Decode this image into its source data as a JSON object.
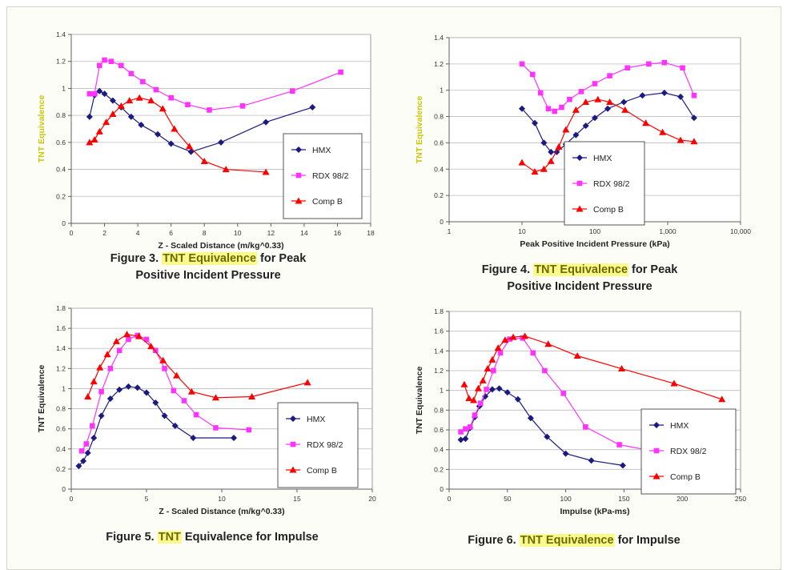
{
  "colors": {
    "plot_bg": "#ffffff",
    "grid": "#bdbdbd",
    "axis": "#606060",
    "ylabel_yellow": "#c8c800",
    "highlight_bg": "#fafa8c",
    "highlight_text": "#6b6b00"
  },
  "figures": [
    {
      "caption": {
        "prefix": "Figure 3. ",
        "highlight": "TNT Equivalence",
        "line1_rest": " for Peak",
        "line2": "Positive Incident Pressure"
      },
      "chart_data": {
        "type": "line",
        "xlabel": "Z - Scaled Distance (m/kg^0.33)",
        "ylabel": "TNT Equivalence",
        "ylabel_color": "#c8c800",
        "xscale": "linear",
        "xlim": [
          0,
          18
        ],
        "ylim": [
          0,
          1.4
        ],
        "xticks": [
          0,
          2,
          4,
          6,
          8,
          10,
          12,
          14,
          16,
          18
        ],
        "xtick_labels": [
          "0",
          "2",
          "4",
          "6",
          "8",
          "10",
          "12",
          "14",
          "16",
          "18"
        ],
        "yticks": [
          0,
          0.2,
          0.4,
          0.6,
          0.8,
          1,
          1.2,
          1.4
        ],
        "ytick_labels": [
          "0",
          "0.2",
          "0.4",
          "0.6",
          "0.8",
          "1",
          "1.2",
          "1.4"
        ],
        "grid": "horizontal",
        "legend_position": "bottom-right",
        "series": [
          {
            "name": "HMX",
            "color": "#1a1a80",
            "marker": "diamond",
            "x": [
              1.1,
              1.4,
              1.7,
              2.0,
              2.5,
              3.0,
              3.6,
              4.2,
              5.2,
              6.0,
              7.2,
              9.0,
              11.7,
              14.5
            ],
            "y": [
              0.79,
              0.95,
              0.98,
              0.96,
              0.91,
              0.86,
              0.79,
              0.73,
              0.66,
              0.59,
              0.53,
              0.6,
              0.75,
              0.86
            ]
          },
          {
            "name": "RDX 98/2",
            "color": "#ff33ff",
            "marker": "square",
            "x": [
              1.1,
              1.4,
              1.7,
              2.0,
              2.4,
              3.0,
              3.6,
              4.3,
              5.1,
              6.0,
              7.0,
              8.3,
              10.3,
              13.3,
              16.2
            ],
            "y": [
              0.96,
              0.96,
              1.17,
              1.21,
              1.2,
              1.17,
              1.11,
              1.05,
              0.99,
              0.93,
              0.88,
              0.84,
              0.87,
              0.98,
              1.12
            ]
          },
          {
            "name": "Comp B",
            "color": "#ff0000",
            "marker": "triangle",
            "x": [
              1.1,
              1.4,
              1.7,
              2.1,
              2.5,
              3.0,
              3.5,
              4.1,
              4.8,
              5.5,
              6.2,
              7.1,
              8.0,
              9.3,
              11.7
            ],
            "y": [
              0.6,
              0.62,
              0.68,
              0.75,
              0.81,
              0.87,
              0.91,
              0.93,
              0.91,
              0.85,
              0.7,
              0.57,
              0.46,
              0.4,
              0.38
            ]
          }
        ]
      }
    },
    {
      "caption": {
        "prefix": "Figure 4. ",
        "highlight": "TNT Equivalence",
        "line1_rest": " for Peak",
        "line2": "Positive Incident Pressure"
      },
      "chart_data": {
        "type": "line",
        "xlabel": "Peak Positive Incident Pressure (kPa)",
        "ylabel": "TNT Equivalence",
        "ylabel_color": "#c8c800",
        "xscale": "log",
        "xlim": [
          1,
          10000
        ],
        "ylim": [
          0,
          1.4
        ],
        "xticks": [
          1,
          10,
          100,
          1000,
          10000
        ],
        "xtick_labels": [
          "1",
          "10",
          "100",
          "1,000",
          "10,000"
        ],
        "yticks": [
          0,
          0.2,
          0.4,
          0.6,
          0.8,
          1,
          1.2,
          1.4
        ],
        "ytick_labels": [
          "0",
          "0.2",
          "0.4",
          "0.6",
          "0.8",
          "1",
          "1.2",
          "1.4"
        ],
        "grid": "horizontal",
        "legend_position": "bottom-center",
        "series": [
          {
            "name": "HMX",
            "color": "#1a1a80",
            "marker": "diamond",
            "x": [
              10,
              15,
              20,
              25,
              30,
              40,
              55,
              75,
              100,
              150,
              250,
              450,
              900,
              1500,
              2300
            ],
            "y": [
              0.86,
              0.75,
              0.6,
              0.53,
              0.53,
              0.59,
              0.66,
              0.73,
              0.79,
              0.86,
              0.91,
              0.96,
              0.98,
              0.95,
              0.79
            ]
          },
          {
            "name": "RDX 98/2",
            "color": "#ff33ff",
            "marker": "square",
            "x": [
              10,
              14,
              18,
              23,
              28,
              35,
              45,
              65,
              100,
              160,
              280,
              550,
              900,
              1600,
              2300
            ],
            "y": [
              1.2,
              1.12,
              0.98,
              0.86,
              0.84,
              0.87,
              0.93,
              0.99,
              1.05,
              1.11,
              1.17,
              1.2,
              1.21,
              1.17,
              0.96
            ]
          },
          {
            "name": "Comp B",
            "color": "#ff0000",
            "marker": "triangle",
            "x": [
              10,
              15,
              20,
              25,
              32,
              40,
              55,
              75,
              110,
              160,
              260,
              500,
              850,
              1500,
              2300
            ],
            "y": [
              0.45,
              0.38,
              0.4,
              0.46,
              0.57,
              0.7,
              0.85,
              0.91,
              0.93,
              0.91,
              0.85,
              0.75,
              0.68,
              0.62,
              0.61
            ]
          }
        ]
      }
    },
    {
      "caption": {
        "prefix": "Figure 5. ",
        "highlight": "TNT",
        "line1_rest": " Equivalence for Impulse",
        "line2": ""
      },
      "chart_data": {
        "type": "line",
        "xlabel": "Z - Scaled Distance (m/kg^0.33)",
        "ylabel": "TNT Equivalence",
        "ylabel_color": "#222222",
        "xscale": "linear",
        "xlim": [
          0,
          20
        ],
        "ylim": [
          0,
          1.8
        ],
        "xticks": [
          0,
          5,
          10,
          15,
          20
        ],
        "xtick_labels": [
          "0",
          "5",
          "10",
          "15",
          "20"
        ],
        "yticks": [
          0,
          0.2,
          0.4,
          0.6,
          0.8,
          1,
          1.2,
          1.4,
          1.6,
          1.8
        ],
        "ytick_labels": [
          "0",
          "0.2",
          "0.4",
          "0.6",
          "0.8",
          "1",
          "1.2",
          "1.4",
          "1.6",
          "1.8"
        ],
        "grid": "horizontal",
        "legend_position": "bottom-right",
        "series": [
          {
            "name": "HMX",
            "color": "#1a1a80",
            "marker": "diamond",
            "x": [
              0.5,
              0.8,
              1.1,
              1.5,
              2.0,
              2.6,
              3.2,
              3.8,
              4.4,
              5.0,
              5.6,
              6.2,
              6.9,
              8.1,
              10.8
            ],
            "y": [
              0.23,
              0.28,
              0.36,
              0.51,
              0.73,
              0.9,
              0.99,
              1.02,
              1.01,
              0.96,
              0.86,
              0.73,
              0.63,
              0.51,
              0.51
            ]
          },
          {
            "name": "RDX 98/2",
            "color": "#ff33ff",
            "marker": "square",
            "x": [
              0.7,
              1.0,
              1.4,
              2.0,
              2.6,
              3.2,
              3.8,
              4.4,
              5.0,
              5.6,
              6.2,
              6.8,
              7.5,
              8.3,
              9.6,
              11.8
            ],
            "y": [
              0.38,
              0.45,
              0.63,
              0.97,
              1.2,
              1.38,
              1.49,
              1.53,
              1.49,
              1.38,
              1.2,
              0.98,
              0.88,
              0.74,
              0.61,
              0.59
            ]
          },
          {
            "name": "Comp B",
            "color": "#ff0000",
            "marker": "triangle",
            "x": [
              1.1,
              1.5,
              1.9,
              2.4,
              3.0,
              3.7,
              4.5,
              5.3,
              6.1,
              7.0,
              8.0,
              9.6,
              12.0,
              15.7
            ],
            "y": [
              0.92,
              1.07,
              1.21,
              1.34,
              1.47,
              1.54,
              1.52,
              1.42,
              1.28,
              1.13,
              0.97,
              0.91,
              0.92,
              1.06
            ]
          }
        ]
      }
    },
    {
      "caption": {
        "prefix": "Figure 6. ",
        "highlight": "TNT Equivalence",
        "line1_rest": " for Impulse",
        "line2": ""
      },
      "chart_data": {
        "type": "line",
        "xlabel": "Impulse (kPa-ms)",
        "ylabel": "TNT Equivalence",
        "ylabel_color": "#222222",
        "xscale": "linear",
        "xlim": [
          0,
          250
        ],
        "ylim": [
          0,
          1.8
        ],
        "xticks": [
          0,
          50,
          100,
          150,
          200,
          250
        ],
        "xtick_labels": [
          "0",
          "50",
          "100",
          "150",
          "200",
          "250"
        ],
        "yticks": [
          0,
          0.2,
          0.4,
          0.6,
          0.8,
          1,
          1.2,
          1.4,
          1.6,
          1.8
        ],
        "ytick_labels": [
          "0",
          "0.2",
          "0.4",
          "0.6",
          "0.8",
          "1",
          "1.2",
          "1.4",
          "1.6",
          "1.8"
        ],
        "grid": "horizontal",
        "legend_position": "bottom-right",
        "series": [
          {
            "name": "HMX",
            "color": "#1a1a80",
            "marker": "diamond",
            "x": [
              10,
              14,
              18,
              22,
              26,
              31,
              37,
              43,
              50,
              59,
              70,
              84,
              100,
              122,
              149
            ],
            "y": [
              0.5,
              0.51,
              0.62,
              0.73,
              0.84,
              0.94,
              1.01,
              1.02,
              0.98,
              0.91,
              0.72,
              0.53,
              0.36,
              0.29,
              0.24
            ]
          },
          {
            "name": "RDX 98/2",
            "color": "#ff33ff",
            "marker": "square",
            "x": [
              10,
              14,
              18,
              22,
              27,
              32,
              38,
              44,
              52,
              63,
              72,
              82,
              98,
              117,
              146,
              173
            ],
            "y": [
              0.58,
              0.61,
              0.63,
              0.75,
              0.87,
              1.01,
              1.2,
              1.38,
              1.52,
              1.53,
              1.38,
              1.2,
              0.97,
              0.63,
              0.45,
              0.39
            ]
          },
          {
            "name": "Comp B",
            "color": "#ff0000",
            "marker": "triangle",
            "x": [
              13,
              17,
              21,
              25,
              29,
              33,
              37,
              42,
              48,
              55,
              65,
              85,
              110,
              148,
              193,
              234
            ],
            "y": [
              1.06,
              0.92,
              0.9,
              1.02,
              1.1,
              1.22,
              1.31,
              1.43,
              1.51,
              1.54,
              1.55,
              1.47,
              1.35,
              1.22,
              1.07,
              0.91
            ]
          }
        ]
      }
    }
  ]
}
